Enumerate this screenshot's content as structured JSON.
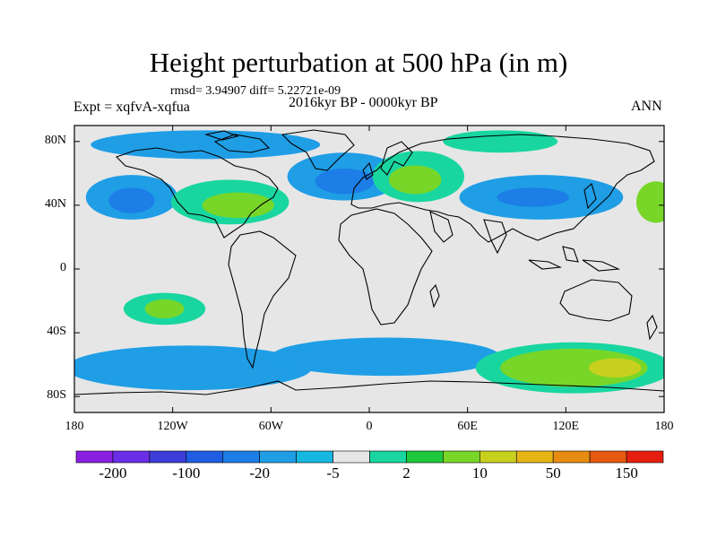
{
  "title": "Height perturbation at 500 hPa (in m)",
  "stats": "rmsd= 3.94907 diff= 5.22721e-09",
  "experiment": "Expt = xqfvA-xqfua",
  "period": "2016kyr BP - 0000kyr BP",
  "season": "ANN",
  "map": {
    "projection": "cylindrical equidistant",
    "lat_range": [
      -90,
      90
    ],
    "lon_range": [
      -180,
      180
    ],
    "lat_ticks": [
      {
        "value": 80,
        "label": "80N"
      },
      {
        "value": 40,
        "label": "40N"
      },
      {
        "value": 0,
        "label": "0"
      },
      {
        "value": -40,
        "label": "40S"
      },
      {
        "value": -80,
        "label": "80S"
      }
    ],
    "lon_ticks": [
      {
        "value": -180,
        "label": "180"
      },
      {
        "value": -120,
        "label": "120W"
      },
      {
        "value": -60,
        "label": "60W"
      },
      {
        "value": 0,
        "label": "0"
      },
      {
        "value": 60,
        "label": "60E"
      },
      {
        "value": 120,
        "label": "120E"
      },
      {
        "value": 180,
        "label": "180"
      }
    ],
    "background_color": "#e6e6e6",
    "coastline_color": "#000000"
  },
  "colorbar": {
    "colors": [
      "#8a1ee0",
      "#6a2ee6",
      "#3c3cd8",
      "#1f5de2",
      "#1c7ee6",
      "#1f9ee6",
      "#16b8e0",
      "#e6e6e6",
      "#19d6a0",
      "#1ec83c",
      "#78d628",
      "#c8d01e",
      "#e6b414",
      "#e68c10",
      "#e65a10",
      "#e61e10"
    ],
    "labels": [
      "-200",
      "-100",
      "-20",
      "-5",
      "2",
      "10",
      "50",
      "150"
    ]
  },
  "fields": [
    {
      "name": "arctic-low",
      "level": "-5",
      "color": "#1f9ee6",
      "lon": -100,
      "lat": 78,
      "rx": 70,
      "ry": 9
    },
    {
      "name": "north-pacific-low",
      "level": "-5",
      "color": "#1f9ee6",
      "lon": -145,
      "lat": 45,
      "rx": 28,
      "ry": 14
    },
    {
      "name": "north-pacific-low-core",
      "level": "-20",
      "color": "#1c7ee6",
      "lon": -145,
      "lat": 43,
      "rx": 14,
      "ry": 8
    },
    {
      "name": "north-america-high",
      "level": "2",
      "color": "#19d6a0",
      "lon": -85,
      "lat": 42,
      "rx": 36,
      "ry": 14
    },
    {
      "name": "north-america-high-core",
      "level": "10",
      "color": "#78d628",
      "lon": -80,
      "lat": 40,
      "rx": 22,
      "ry": 8
    },
    {
      "name": "north-atlantic-low",
      "level": "-5",
      "color": "#1f9ee6",
      "lon": -15,
      "lat": 58,
      "rx": 35,
      "ry": 15
    },
    {
      "name": "north-atlantic-low-core",
      "level": "-20",
      "color": "#1c7ee6",
      "lon": -15,
      "lat": 55,
      "rx": 18,
      "ry": 8
    },
    {
      "name": "eurasia-high",
      "level": "2",
      "color": "#19d6a0",
      "lon": 30,
      "lat": 58,
      "rx": 28,
      "ry": 16
    },
    {
      "name": "eurasia-high-core",
      "level": "10",
      "color": "#78d628",
      "lon": 28,
      "lat": 56,
      "rx": 16,
      "ry": 9
    },
    {
      "name": "siberia-low",
      "level": "-5",
      "color": "#1f9ee6",
      "lon": 105,
      "lat": 45,
      "rx": 50,
      "ry": 14
    },
    {
      "name": "siberia-low-core",
      "level": "-20",
      "color": "#1c7ee6",
      "lon": 100,
      "lat": 45,
      "rx": 22,
      "ry": 6
    },
    {
      "name": "far-east-high",
      "level": "10",
      "color": "#78d628",
      "lon": 175,
      "lat": 42,
      "rx": 12,
      "ry": 13
    },
    {
      "name": "arctic-ocean-high",
      "level": "2",
      "color": "#19d6a0",
      "lon": 80,
      "lat": 80,
      "rx": 35,
      "ry": 7
    },
    {
      "name": "south-pacific-high",
      "level": "2",
      "color": "#19d6a0",
      "lon": -125,
      "lat": -25,
      "rx": 25,
      "ry": 10
    },
    {
      "name": "south-pacific-high-core",
      "level": "10",
      "color": "#78d628",
      "lon": -125,
      "lat": -25,
      "rx": 12,
      "ry": 6
    },
    {
      "name": "southern-ocean-low-west",
      "level": "-5",
      "color": "#1f9ee6",
      "lon": -110,
      "lat": -62,
      "rx": 75,
      "ry": 14
    },
    {
      "name": "southern-ocean-low-east",
      "level": "-5",
      "color": "#1f9ee6",
      "lon": 10,
      "lat": -55,
      "rx": 70,
      "ry": 12
    },
    {
      "name": "southern-ocean-high",
      "level": "2",
      "color": "#19d6a0",
      "lon": 125,
      "lat": -62,
      "rx": 60,
      "ry": 16
    },
    {
      "name": "southern-ocean-high-core",
      "level": "10",
      "color": "#78d628",
      "lon": 125,
      "lat": -62,
      "rx": 45,
      "ry": 12
    },
    {
      "name": "southern-ocean-high-peak",
      "level": "50",
      "color": "#c8d01e",
      "lon": 150,
      "lat": -62,
      "rx": 16,
      "ry": 6
    }
  ]
}
